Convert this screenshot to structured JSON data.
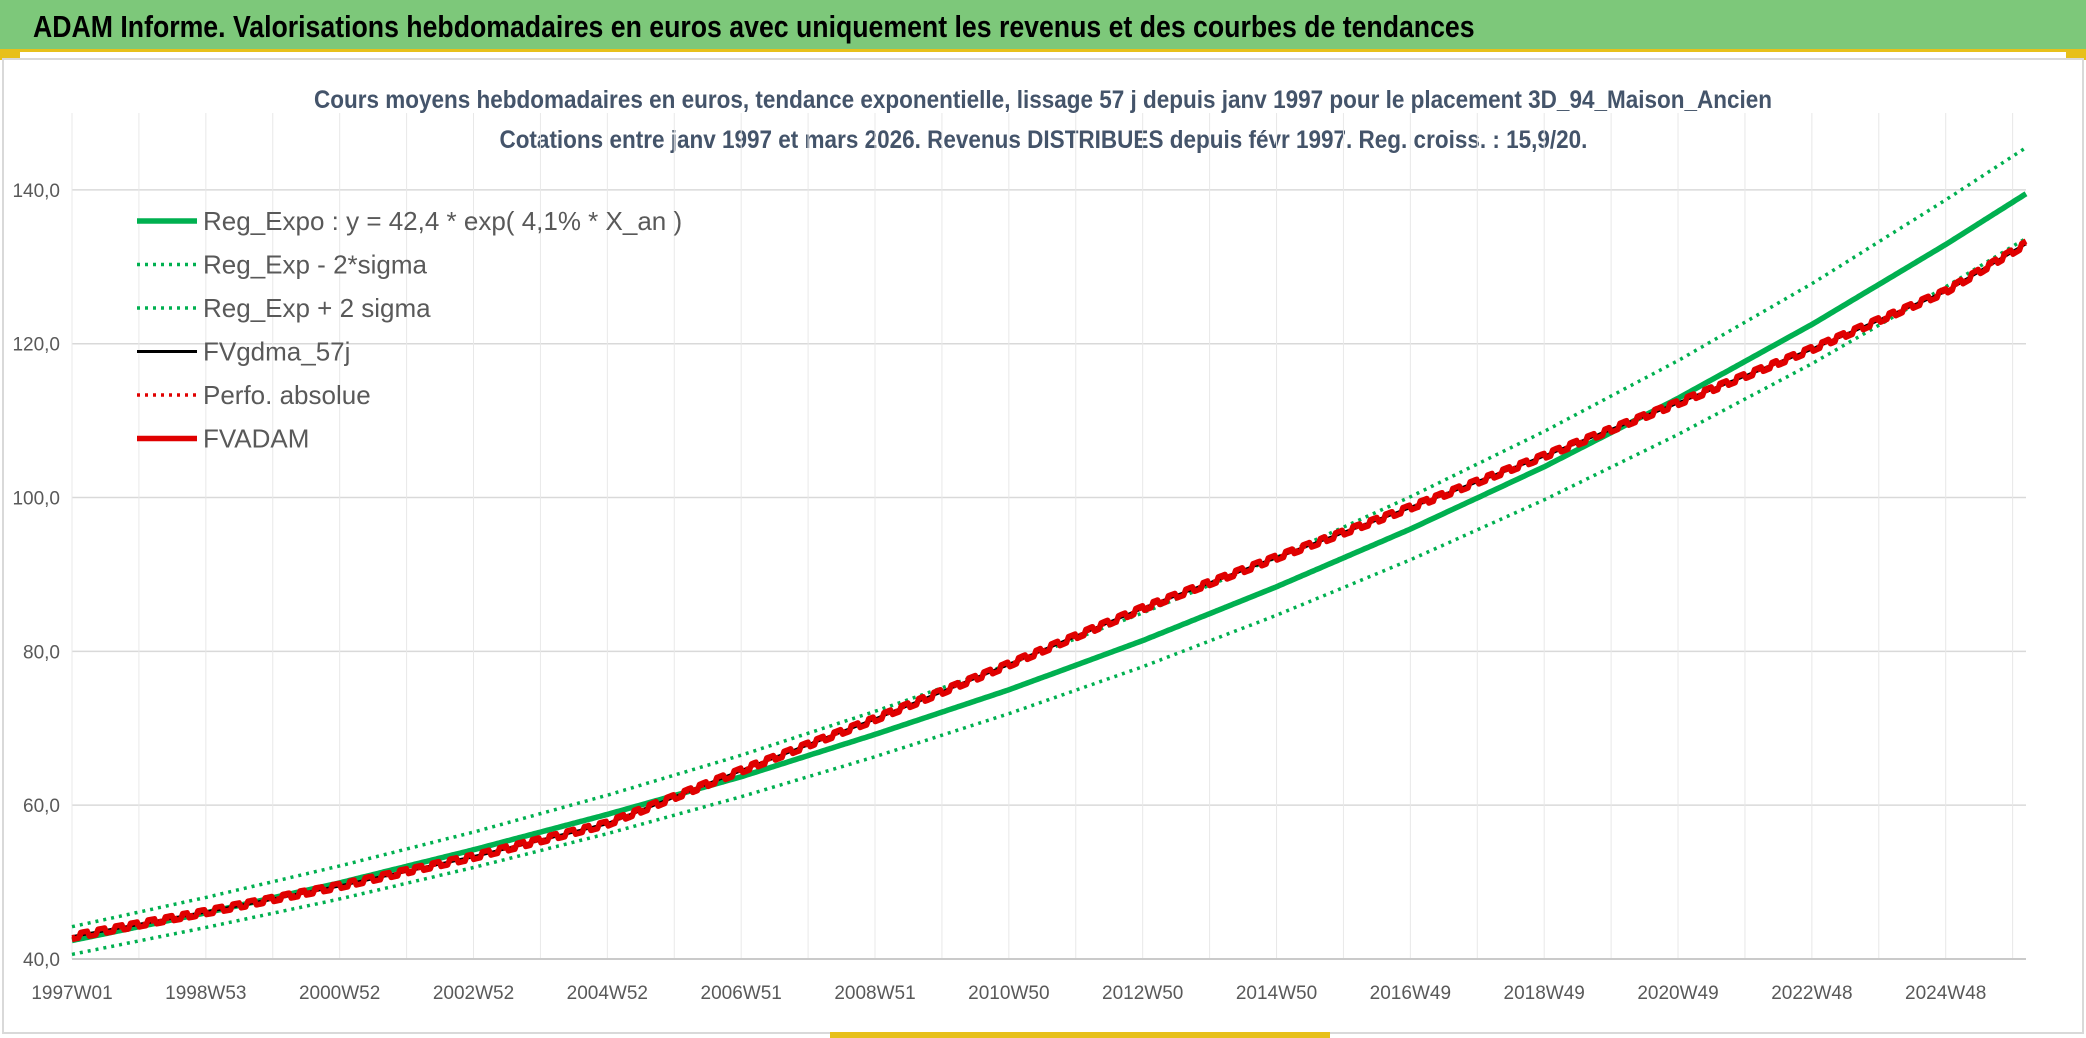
{
  "header": {
    "title": "ADAM Informe. Valorisations hebdomadaires en euros avec uniquement les revenus et des courbes de tendances"
  },
  "colors": {
    "banner": "#7dc87a",
    "accent": "#e7c01b",
    "trend": "#00b050",
    "fvadam": "#e00000",
    "fvgdma": "#000000",
    "perf": "#e00000",
    "grid": "#d9d9d9",
    "title_text": "#44546a"
  },
  "chart_data": {
    "type": "line",
    "title": "Cours moyens hebdomadaires en euros, tendance exponentielle, lissage 57 j depuis janv 1997 pour le placement 3D_94_Maison_Ancien",
    "subtitle": "Cotations entre janv 1997 et mars 2026. Revenus DISTRIBUES depuis févr 1997. Reg. croiss. : 15,9/20.",
    "xlabel": "",
    "ylabel": "",
    "x_range": [
      1997.0,
      2026.2
    ],
    "ylim": [
      40,
      150
    ],
    "yticks": [
      40,
      60,
      80,
      100,
      120,
      140
    ],
    "ytick_labels": [
      "40,0",
      "60,0",
      "80,0",
      "100,0",
      "120,0",
      "140,0"
    ],
    "xticks": [
      1997.0,
      1999.0,
      2001.0,
      2003.0,
      2005.0,
      2007.0,
      2009.0,
      2011.0,
      2013.0,
      2015.0,
      2017.0,
      2019.0,
      2021.0,
      2023.0,
      2025.0
    ],
    "xtick_labels": [
      "1997W01",
      "1998W53",
      "2000W52",
      "2002W52",
      "2004W52",
      "2006W51",
      "2008W51",
      "2010W50",
      "2012W50",
      "2014W50",
      "2016W49",
      "2018W49",
      "2020W49",
      "2022W48",
      "2024W48"
    ],
    "grid": true,
    "legend_position": "top-left",
    "series": [
      {
        "name": "Reg_Expo : y = 42,4 * exp( 4,1% *  X_an )",
        "style": "solid-thick",
        "color": "#00b050",
        "x": [
          1997,
          1999,
          2001,
          2003,
          2005,
          2007,
          2009,
          2011,
          2013,
          2015,
          2017,
          2019,
          2021,
          2023,
          2025,
          2026.2
        ],
        "y": [
          42.4,
          46.0,
          49.9,
          54.2,
          58.8,
          63.7,
          69.2,
          75.0,
          81.4,
          88.4,
          95.9,
          104.0,
          112.9,
          122.5,
          132.9,
          139.5
        ]
      },
      {
        "name": "Reg_Exp - 2*sigma",
        "style": "dotted",
        "color": "#00b050",
        "x": [
          1997,
          1999,
          2001,
          2003,
          2005,
          2007,
          2009,
          2011,
          2013,
          2015,
          2017,
          2019,
          2021,
          2023,
          2025,
          2026.2
        ],
        "y": [
          40.6,
          44.1,
          47.8,
          51.9,
          56.3,
          61.1,
          66.3,
          71.9,
          78.0,
          84.7,
          91.9,
          99.7,
          108.2,
          117.4,
          127.4,
          133.7
        ]
      },
      {
        "name": "Reg_Exp + 2 sigma",
        "style": "dotted",
        "color": "#00b050",
        "x": [
          1997,
          1999,
          2001,
          2003,
          2005,
          2007,
          2009,
          2011,
          2013,
          2015,
          2017,
          2019,
          2021,
          2023,
          2025,
          2026.2
        ],
        "y": [
          44.2,
          48.0,
          52.1,
          56.5,
          61.3,
          66.5,
          72.2,
          78.3,
          85.0,
          92.2,
          100.1,
          108.6,
          117.8,
          127.8,
          138.7,
          145.5
        ]
      },
      {
        "name": "FVgdma_57j",
        "style": "solid",
        "color": "#000000",
        "x": [
          1997,
          1999,
          2001,
          2003,
          2005,
          2007,
          2009,
          2011,
          2013,
          2015,
          2017,
          2019,
          2021,
          2023,
          2025,
          2026.2
        ],
        "y": [
          42.9,
          46.1,
          49.5,
          53.3,
          57.6,
          64.5,
          71.2,
          78.3,
          85.6,
          92.2,
          98.7,
          105.4,
          112.3,
          119.3,
          126.8,
          133.0
        ]
      },
      {
        "name": "Perfo. absolue",
        "style": "dotted",
        "color": "#e00000",
        "x": [
          1997,
          1999,
          2001,
          2003,
          2005,
          2007,
          2009,
          2011,
          2013,
          2015,
          2017,
          2019,
          2021,
          2023,
          2025,
          2026.2
        ],
        "y": [
          42.9,
          46.1,
          49.5,
          53.3,
          57.6,
          64.5,
          71.2,
          78.3,
          85.6,
          92.2,
          98.7,
          105.4,
          112.3,
          119.3,
          126.8,
          133.0
        ]
      },
      {
        "name": "FVADAM",
        "style": "solid-thick",
        "color": "#e00000",
        "x": [
          1997,
          1999,
          2001,
          2003,
          2005,
          2007,
          2009,
          2011,
          2013,
          2015,
          2017,
          2019,
          2021,
          2023,
          2025,
          2026.2
        ],
        "y": [
          42.9,
          46.1,
          49.5,
          53.3,
          57.6,
          64.5,
          71.2,
          78.3,
          85.6,
          92.2,
          98.7,
          105.4,
          112.3,
          119.3,
          126.8,
          133.0
        ]
      }
    ]
  }
}
